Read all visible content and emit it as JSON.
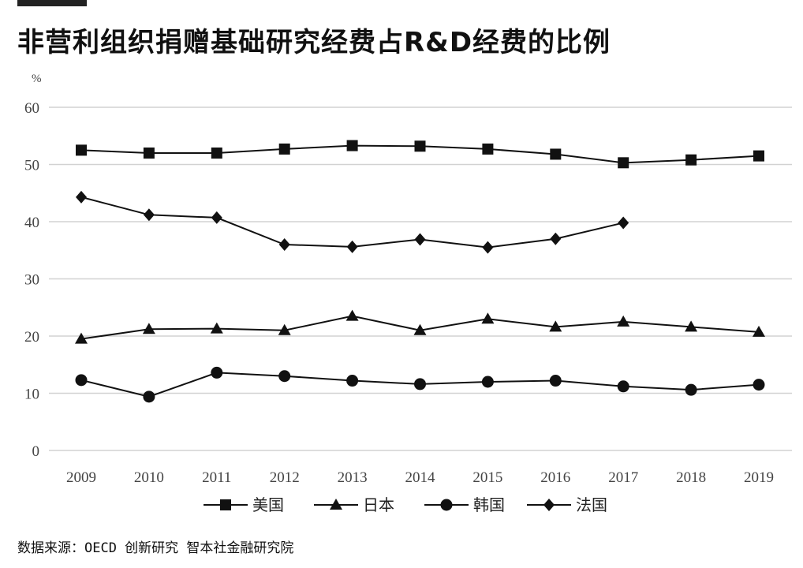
{
  "title": "非营利组织捐赠基础研究经费占R&D经费的比例",
  "source": "数据来源：OECD 创新研究 智本社金融研究院",
  "chart_data": {
    "type": "line",
    "ylabel": "%",
    "ylim": [
      0,
      60
    ],
    "yticks": [
      0,
      10,
      20,
      30,
      40,
      50,
      60
    ],
    "grid": true,
    "legend_position": "bottom",
    "categories": [
      "2009",
      "2010",
      "2011",
      "2012",
      "2013",
      "2014",
      "2015",
      "2016",
      "2017",
      "2018",
      "2019"
    ],
    "series": [
      {
        "name": "美国",
        "marker": "square",
        "values": [
          52.5,
          52.0,
          52.0,
          52.7,
          53.3,
          53.2,
          52.7,
          51.8,
          50.3,
          50.8,
          51.5
        ]
      },
      {
        "name": "日本",
        "marker": "triangle",
        "values": [
          19.5,
          21.2,
          21.3,
          21.0,
          23.5,
          21.0,
          23.0,
          21.6,
          22.5,
          21.6,
          20.7
        ]
      },
      {
        "name": "韩国",
        "marker": "circle",
        "values": [
          12.3,
          9.4,
          13.6,
          13.0,
          12.2,
          11.6,
          12.0,
          12.2,
          11.2,
          10.6,
          11.5
        ]
      },
      {
        "name": "法国",
        "marker": "diamond",
        "values": [
          44.3,
          41.2,
          40.7,
          36.0,
          35.6,
          36.9,
          35.5,
          37.0,
          39.8,
          null,
          null
        ]
      }
    ]
  }
}
